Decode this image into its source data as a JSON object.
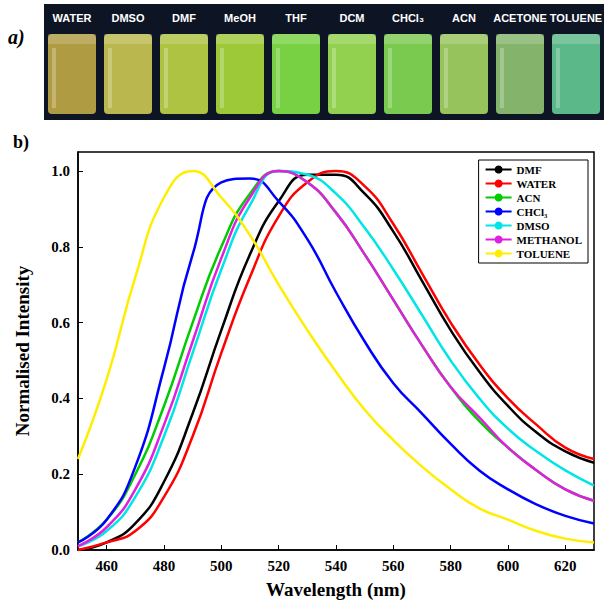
{
  "photo": {
    "panel_label": "a)",
    "vials": [
      {
        "label": "WATER",
        "color": "#bda845"
      },
      {
        "label": "DMSO",
        "color": "#c9c652"
      },
      {
        "label": "DMF",
        "color": "#bcd244"
      },
      {
        "label": "MeOH",
        "color": "#a9d93c"
      },
      {
        "label": "THF",
        "color": "#80e246"
      },
      {
        "label": "DCM",
        "color": "#9de254"
      },
      {
        "label": "CHCl₃",
        "color": "#84da55"
      },
      {
        "label": "ACN",
        "color": "#a2d262"
      },
      {
        "label": "ACETONE",
        "color": "#8ec272"
      },
      {
        "label": "TOLUENE",
        "color": "#62c892"
      }
    ]
  },
  "chart_data": {
    "type": "line",
    "panel_label": "b)",
    "x_label": "Wavelength (nm)",
    "y_label": "Normalised Intensity",
    "x": [
      450,
      460,
      470,
      480,
      490,
      500,
      510,
      520,
      530,
      540,
      550,
      560,
      570,
      580,
      590,
      600,
      610,
      620,
      630
    ],
    "series": [
      {
        "name": "DMF",
        "color": "#000000",
        "values": [
          0.0,
          0.02,
          0.07,
          0.18,
          0.36,
          0.58,
          0.78,
          0.92,
          0.99,
          0.99,
          0.94,
          0.84,
          0.71,
          0.58,
          0.47,
          0.38,
          0.31,
          0.26,
          0.23
        ]
      },
      {
        "name": "WATER",
        "color": "#ff0000",
        "values": [
          0.0,
          0.02,
          0.05,
          0.14,
          0.3,
          0.52,
          0.72,
          0.88,
          0.97,
          1.0,
          0.96,
          0.86,
          0.73,
          0.6,
          0.49,
          0.4,
          0.33,
          0.27,
          0.24
        ]
      },
      {
        "name": "ACN",
        "color": "#00cc00",
        "values": [
          0.02,
          0.08,
          0.2,
          0.38,
          0.6,
          0.8,
          0.94,
          1.0,
          0.97,
          0.89,
          0.78,
          0.66,
          0.54,
          0.43,
          0.34,
          0.27,
          0.21,
          0.16,
          0.13
        ]
      },
      {
        "name": "CHCl₃",
        "color": "#0000ff",
        "values": [
          0.02,
          0.08,
          0.22,
          0.48,
          0.78,
          0.97,
          0.98,
          0.92,
          0.82,
          0.68,
          0.55,
          0.44,
          0.36,
          0.28,
          0.21,
          0.16,
          0.12,
          0.09,
          0.07
        ]
      },
      {
        "name": "DMSO",
        "color": "#00e5e5",
        "values": [
          0.01,
          0.05,
          0.14,
          0.3,
          0.52,
          0.74,
          0.91,
          1.0,
          0.99,
          0.94,
          0.85,
          0.74,
          0.62,
          0.5,
          0.4,
          0.32,
          0.26,
          0.21,
          0.17
        ]
      },
      {
        "name": "METHANOL",
        "color": "#e020e0",
        "values": [
          0.01,
          0.06,
          0.16,
          0.33,
          0.55,
          0.77,
          0.93,
          1.0,
          0.97,
          0.89,
          0.78,
          0.66,
          0.54,
          0.43,
          0.35,
          0.27,
          0.21,
          0.16,
          0.13
        ]
      },
      {
        "name": "TOLUENE",
        "color": "#ffee00",
        "values": [
          0.24,
          0.45,
          0.72,
          0.93,
          1.0,
          0.93,
          0.83,
          0.7,
          0.58,
          0.47,
          0.37,
          0.29,
          0.22,
          0.16,
          0.11,
          0.08,
          0.05,
          0.03,
          0.02
        ]
      }
    ],
    "xlim": [
      450,
      630
    ],
    "xticks": [
      460,
      480,
      500,
      520,
      540,
      560,
      580,
      600,
      620
    ],
    "ylim": [
      0,
      1.05
    ],
    "yticks": [
      {
        "value": 0,
        "label": "0.0"
      },
      0.2,
      0.4,
      0.6,
      0.8,
      {
        "value": 1.0,
        "label": "1.0"
      }
    ],
    "grid": false,
    "legend": "top-right"
  }
}
